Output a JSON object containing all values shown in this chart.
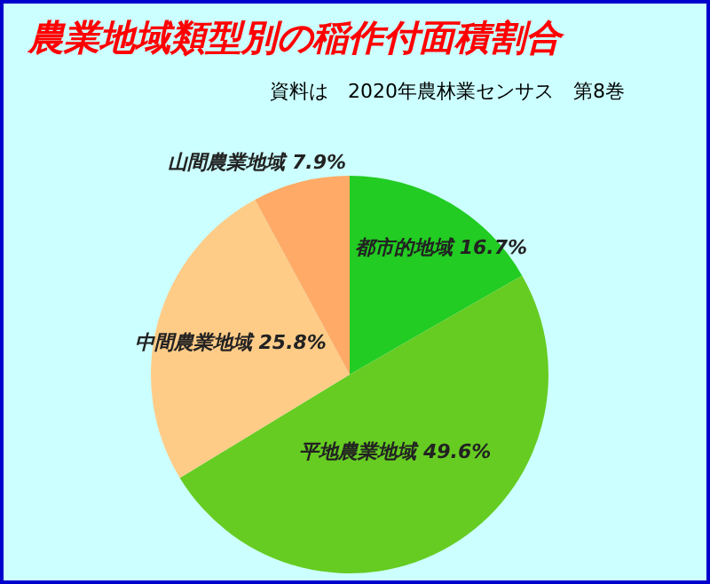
{
  "chart_data": {
    "type": "pie",
    "title": "農業地域類型別の稲作付面積割合",
    "subtitle": "資料は　2020年農林業センサス　第8巻",
    "categories": [
      "都市的地域",
      "平地農業地域",
      "中間農業地域",
      "山間農業地域"
    ],
    "values": [
      16.7,
      49.6,
      25.8,
      7.9
    ],
    "colors": [
      "#22cc22",
      "#66cc22",
      "#ffcc88",
      "#ffaa66"
    ],
    "value_labels": [
      "16.7%",
      "49.6%",
      "25.8%",
      "7.9%"
    ],
    "legend": false
  }
}
